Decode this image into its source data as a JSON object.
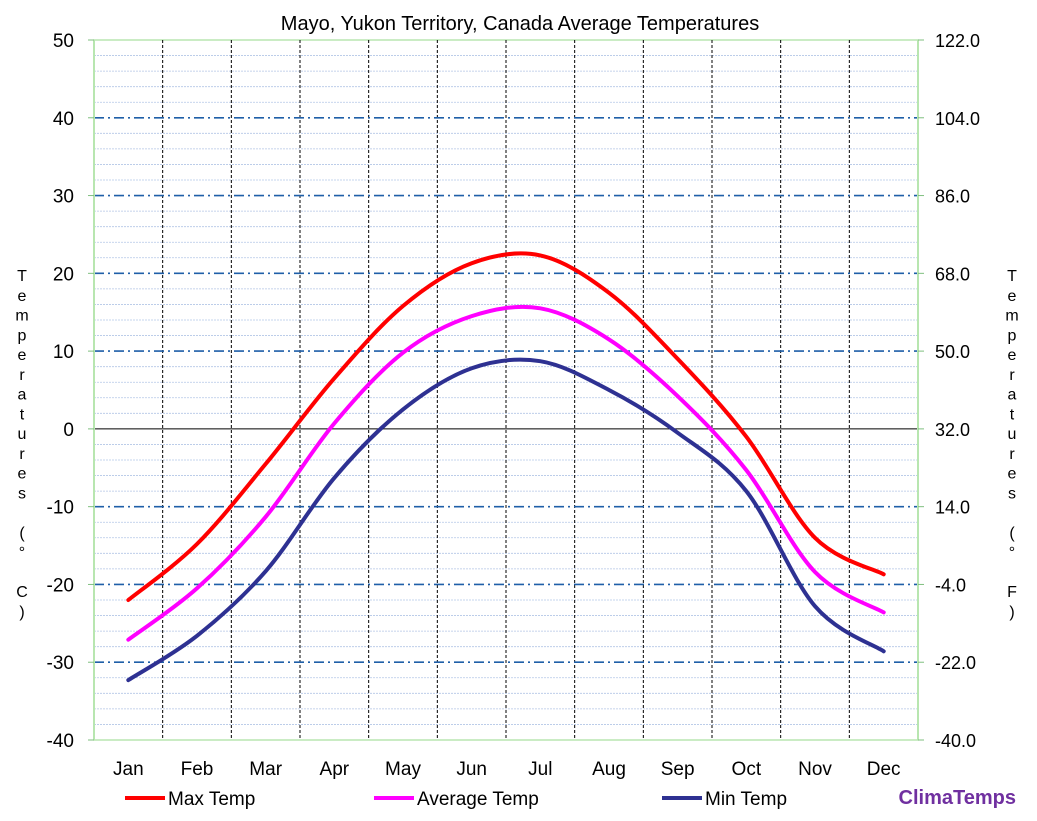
{
  "chart_data": {
    "type": "line",
    "title": "Mayo, Yukon Territory, Canada Average Temperatures",
    "categories": [
      "Jan",
      "Feb",
      "Mar",
      "Apr",
      "May",
      "Jun",
      "Jul",
      "Aug",
      "Sep",
      "Oct",
      "Nov",
      "Dec"
    ],
    "series": [
      {
        "name": "Max Temp",
        "color": "#ff0000",
        "values": [
          -22,
          -14.8,
          -4.5,
          6.5,
          15.8,
          21.3,
          22.3,
          17.5,
          9.0,
          -1.0,
          -14.0,
          -18.7
        ]
      },
      {
        "name": "Average Temp",
        "color": "#ff00ff",
        "values": [
          -27.1,
          -20.5,
          -11.3,
          0.7,
          9.8,
          14.5,
          15.5,
          11.5,
          4.2,
          -5.3,
          -18.4,
          -23.6
        ]
      },
      {
        "name": "Min Temp",
        "color": "#2e3192",
        "values": [
          -32.3,
          -26.6,
          -18.3,
          -6.3,
          2.5,
          7.8,
          8.7,
          5.0,
          -0.5,
          -8.0,
          -22.8,
          -28.6
        ]
      }
    ],
    "ylabel_left": "Temperatures (°C)",
    "ylabel_right": "Temperatures (°F)",
    "ylim": [
      -40,
      50
    ],
    "y_ticks_left": [
      "50",
      "40",
      "30",
      "20",
      "10",
      "0",
      "-10",
      "-20",
      "-30",
      "-40"
    ],
    "y_ticks_right": [
      "122.0",
      "104.0",
      "86.0",
      "68.0",
      "50.0",
      "32.0",
      "14.0",
      "-4.0",
      "-22.0",
      "-40.0"
    ],
    "grid": true,
    "legend_position": "bottom",
    "brand": "ClimaTemps"
  }
}
